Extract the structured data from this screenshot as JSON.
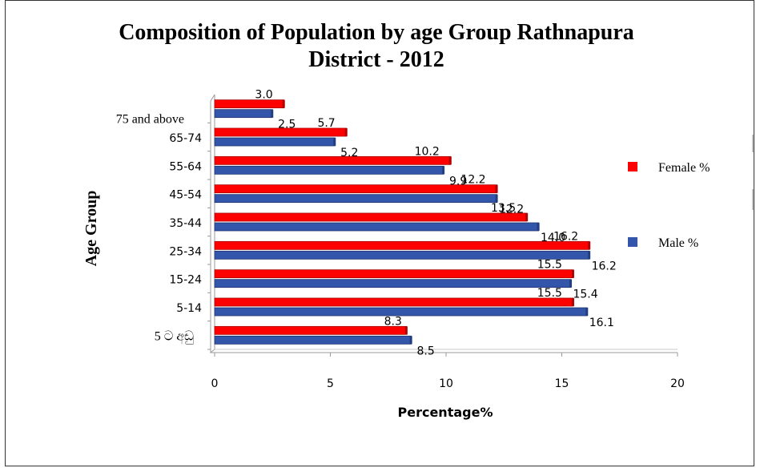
{
  "chart_data": {
    "type": "bar",
    "orientation": "horizontal",
    "title": "Composition of Population by age Group Rathnapura District - 2012",
    "title_lines": [
      "Composition of Population by age Group Rathnapura",
      "District - 2012"
    ],
    "xlabel": "Percentage%",
    "ylabel": "Age Group",
    "xlim": [
      0,
      20
    ],
    "x_ticks": [
      "0",
      "5",
      "10",
      "15",
      "20"
    ],
    "categories": [
      "5 ට අඩු",
      "5-14",
      "15-24",
      "25-34",
      "35-44",
      "45-54",
      "55-64",
      "65-74",
      "75 and above"
    ],
    "series": [
      {
        "name": "Female %",
        "color": "#ff0000",
        "values": [
          8.3,
          15.5,
          15.5,
          16.2,
          13.5,
          12.2,
          10.2,
          5.7,
          3.0
        ],
        "labels": [
          "8.3",
          "15.5",
          "15.5",
          "16.2",
          "13.5",
          "12.2",
          "10.2",
          "5.7",
          "3.0"
        ]
      },
      {
        "name": "Male %",
        "color": "#3355aa",
        "values": [
          8.5,
          16.1,
          15.4,
          16.2,
          14.0,
          12.2,
          9.9,
          5.2,
          2.5
        ],
        "labels": [
          "8.5",
          "16.1",
          "15.4",
          "16.2",
          "14.0",
          "12.2",
          "9.9",
          "5.2",
          "2.5"
        ]
      }
    ],
    "grid": false,
    "legend_position": "right"
  }
}
